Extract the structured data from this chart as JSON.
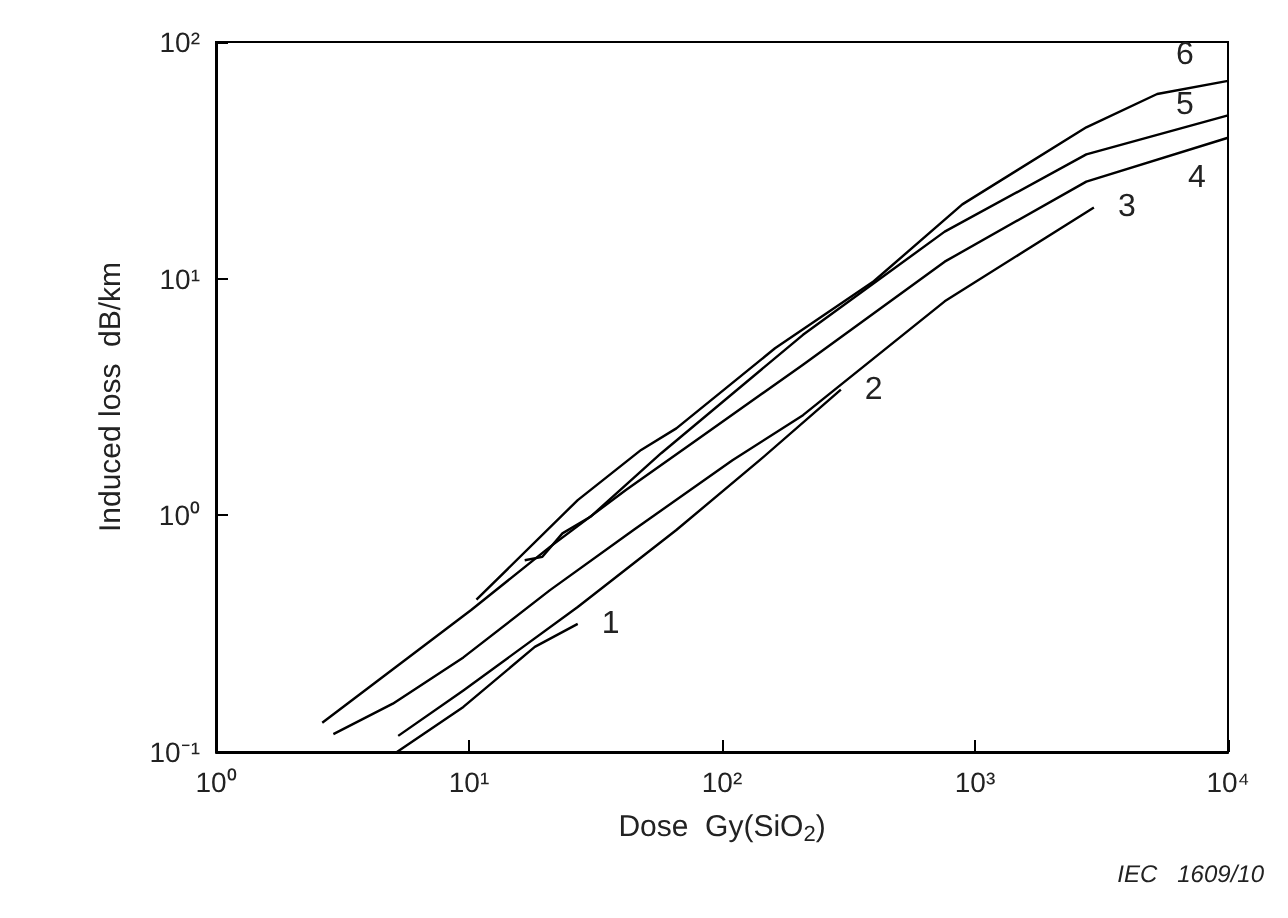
{
  "chart_data": {
    "type": "line",
    "xlabel": "Dose  Gy(SiO$_{2}$)",
    "ylabel": "Induced loss  dB/km",
    "log": "xy",
    "grid": false,
    "legend": false,
    "marker": "none",
    "line_style": "solid",
    "xlim": [
      1,
      10000
    ],
    "ylim": [
      0.1,
      100
    ],
    "xticks": [
      {
        "value": 1,
        "label": "10⁰"
      },
      {
        "value": 10,
        "label": "10¹"
      },
      {
        "value": 100,
        "label": "10²"
      },
      {
        "value": 1000,
        "label": "10³"
      },
      {
        "value": 10000,
        "label": "10⁴"
      }
    ],
    "yticks": [
      {
        "value": 0.1,
        "label": "10⁻¹"
      },
      {
        "value": 1,
        "label": "10⁰"
      },
      {
        "value": 10,
        "label": "10¹"
      },
      {
        "value": 100,
        "label": "10²"
      }
    ],
    "annotations": [
      "IEC   1609/10"
    ],
    "series": [
      {
        "name": "1",
        "color": "#000000",
        "x": [
          5.19,
          9.5,
          18.2,
          26.9
        ],
        "values": [
          0.1,
          0.155,
          0.278,
          0.348
        ]
      },
      {
        "name": "2",
        "color": "#000000",
        "x": [
          5.25,
          9.5,
          26.9,
          66,
          141,
          295
        ],
        "values": [
          0.117,
          0.182,
          0.41,
          0.867,
          1.71,
          3.4
        ]
      },
      {
        "name": "3",
        "color": "#000000",
        "x": [
          2.91,
          5.0,
          9.5,
          20.9,
          44.7,
          110,
          209,
          759,
          2951
        ],
        "values": [
          0.119,
          0.16,
          0.251,
          0.483,
          0.867,
          1.71,
          2.65,
          8.02,
          20
        ]
      },
      {
        "name": "4",
        "color": "#000000",
        "x": [
          2.63,
          10.2,
          20.9,
          41.7,
          79.4,
          209,
          759,
          2754,
          10000
        ],
        "values": [
          0.133,
          0.398,
          0.736,
          1.28,
          2.08,
          4.33,
          11.8,
          25.7,
          39.4
        ]
      },
      {
        "name": "5",
        "color": "#000000",
        "x": [
          16.6,
          19.5,
          23.4,
          30.2,
          57.5,
          209,
          759,
          2754,
          10000
        ],
        "values": [
          0.646,
          0.668,
          0.839,
          0.986,
          1.83,
          5.79,
          15.8,
          33.5,
          49
        ]
      },
      {
        "name": "6",
        "color": "#000000",
        "x": [
          10.7,
          26.9,
          47.9,
          66,
          162,
          398,
          891,
          2754,
          5248,
          10000
        ],
        "values": [
          0.44,
          1.16,
          1.89,
          2.33,
          5.08,
          9.75,
          20.6,
          43.6,
          60.3,
          68.5
        ]
      }
    ]
  }
}
